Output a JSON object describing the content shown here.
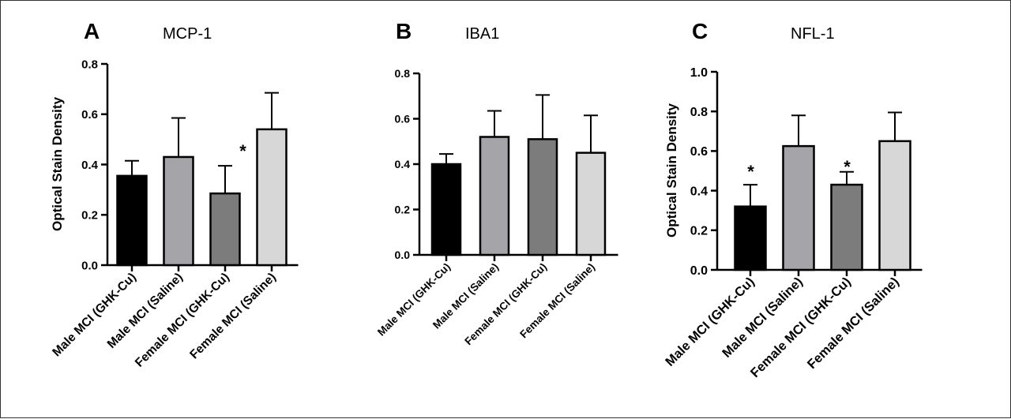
{
  "chart_data": [
    {
      "type": "bar",
      "panel": "A",
      "title": "MCP-1",
      "ylabel": "Optical Stain  Density",
      "categories": [
        "Male MCI (GHK-Cu)",
        "Male MCI (Saline)",
        "Female MCI (GHK-Cu)",
        "Female MCI (Saline)"
      ],
      "values": [
        0.355,
        0.43,
        0.285,
        0.54
      ],
      "errors": [
        0.06,
        0.155,
        0.11,
        0.145
      ],
      "colors": [
        "#000000",
        "#a4a4a9",
        "#7c7c7c",
        "#d7d7d7"
      ],
      "ylim": [
        0,
        0.8
      ],
      "yticks": [
        "0.0",
        "0.2",
        "0.4",
        "0.6",
        "0.8"
      ],
      "annotations": [
        {
          "text": "*",
          "category": 2
        }
      ],
      "grid": false
    },
    {
      "type": "bar",
      "panel": "B",
      "title": "IBA1",
      "ylabel": "",
      "categories": [
        "Male MCI (GHK-Cu)",
        "Male MCI (Saline)",
        "Female MCI (GHK-Cu)",
        "Female MCI (Saline)"
      ],
      "values": [
        0.4,
        0.52,
        0.51,
        0.45
      ],
      "errors": [
        0.045,
        0.115,
        0.195,
        0.165
      ],
      "colors": [
        "#000000",
        "#a4a4a9",
        "#7c7c7c",
        "#d7d7d7"
      ],
      "ylim": [
        0,
        0.8
      ],
      "yticks": [
        "0.0",
        "0.2",
        "0.4",
        "0.6",
        "0.8"
      ],
      "annotations": [],
      "grid": false
    },
    {
      "type": "bar",
      "panel": "C",
      "title": "NFL-1",
      "ylabel": "Optical Stain  Density",
      "categories": [
        "Male MCI (GHK-Cu)",
        "Male MCI (Saline)",
        "Female MCI (GHK-Cu)",
        "Female MCI (Saline)"
      ],
      "values": [
        0.32,
        0.625,
        0.43,
        0.65
      ],
      "errors": [
        0.11,
        0.155,
        0.065,
        0.145
      ],
      "colors": [
        "#000000",
        "#a4a4a9",
        "#7c7c7c",
        "#d7d7d7"
      ],
      "ylim": [
        0,
        1.0
      ],
      "yticks": [
        "0.0",
        "0.2",
        "0.4",
        "0.6",
        "0.8",
        "1.0"
      ],
      "annotations": [
        {
          "text": "*",
          "category": 0
        },
        {
          "text": "*",
          "category": 2
        }
      ],
      "grid": false
    }
  ]
}
